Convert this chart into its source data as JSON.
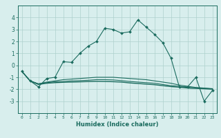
{
  "x": [
    0,
    1,
    2,
    3,
    4,
    5,
    6,
    7,
    8,
    9,
    10,
    11,
    12,
    13,
    14,
    15,
    16,
    17,
    18,
    19,
    20,
    21,
    22,
    23
  ],
  "humidex_line": [
    -0.5,
    -1.3,
    -1.8,
    -1.1,
    -1.0,
    0.3,
    0.25,
    1.0,
    1.6,
    2.0,
    3.1,
    3.0,
    2.7,
    2.8,
    3.8,
    3.2,
    2.6,
    1.9,
    0.6,
    -1.8,
    -1.8,
    -1.0,
    -3.0,
    -2.1
  ],
  "line1": [
    -0.5,
    -1.3,
    -1.55,
    -1.4,
    -1.3,
    -1.2,
    -1.15,
    -1.1,
    -1.05,
    -1.0,
    -1.0,
    -1.0,
    -1.05,
    -1.1,
    -1.15,
    -1.2,
    -1.3,
    -1.4,
    -1.5,
    -1.65,
    -1.75,
    -1.85,
    -1.9,
    -1.95
  ],
  "line2": [
    -0.5,
    -1.3,
    -1.55,
    -1.45,
    -1.38,
    -1.35,
    -1.3,
    -1.28,
    -1.25,
    -1.2,
    -1.2,
    -1.22,
    -1.28,
    -1.35,
    -1.4,
    -1.45,
    -1.5,
    -1.6,
    -1.7,
    -1.75,
    -1.85,
    -1.88,
    -1.92,
    -1.97
  ],
  "line3": [
    -0.5,
    -1.3,
    -1.6,
    -1.5,
    -1.45,
    -1.42,
    -1.4,
    -1.38,
    -1.36,
    -1.34,
    -1.35,
    -1.37,
    -1.4,
    -1.47,
    -1.52,
    -1.57,
    -1.62,
    -1.7,
    -1.78,
    -1.83,
    -1.9,
    -1.93,
    -1.96,
    -2.0
  ],
  "line_color": "#1a6b5e",
  "bg_color": "#d8eeed",
  "grid_color": "#aed0cc",
  "xlabel": "Humidex (Indice chaleur)",
  "ylim": [
    -4,
    5
  ],
  "xlim": [
    -0.5,
    23.5
  ],
  "yticks": [
    -3,
    -2,
    -1,
    0,
    1,
    2,
    3,
    4
  ],
  "xticks": [
    0,
    1,
    2,
    3,
    4,
    5,
    6,
    7,
    8,
    9,
    10,
    11,
    12,
    13,
    14,
    15,
    16,
    17,
    18,
    19,
    20,
    21,
    22,
    23
  ],
  "xtick_labels": [
    "0",
    "1",
    "2",
    "3",
    "4",
    "5",
    "6",
    "7",
    "8",
    "9",
    "10",
    "11",
    "12",
    "13",
    "14",
    "15",
    "16",
    "17",
    "18",
    "19",
    "20",
    "21",
    "22",
    "23"
  ]
}
